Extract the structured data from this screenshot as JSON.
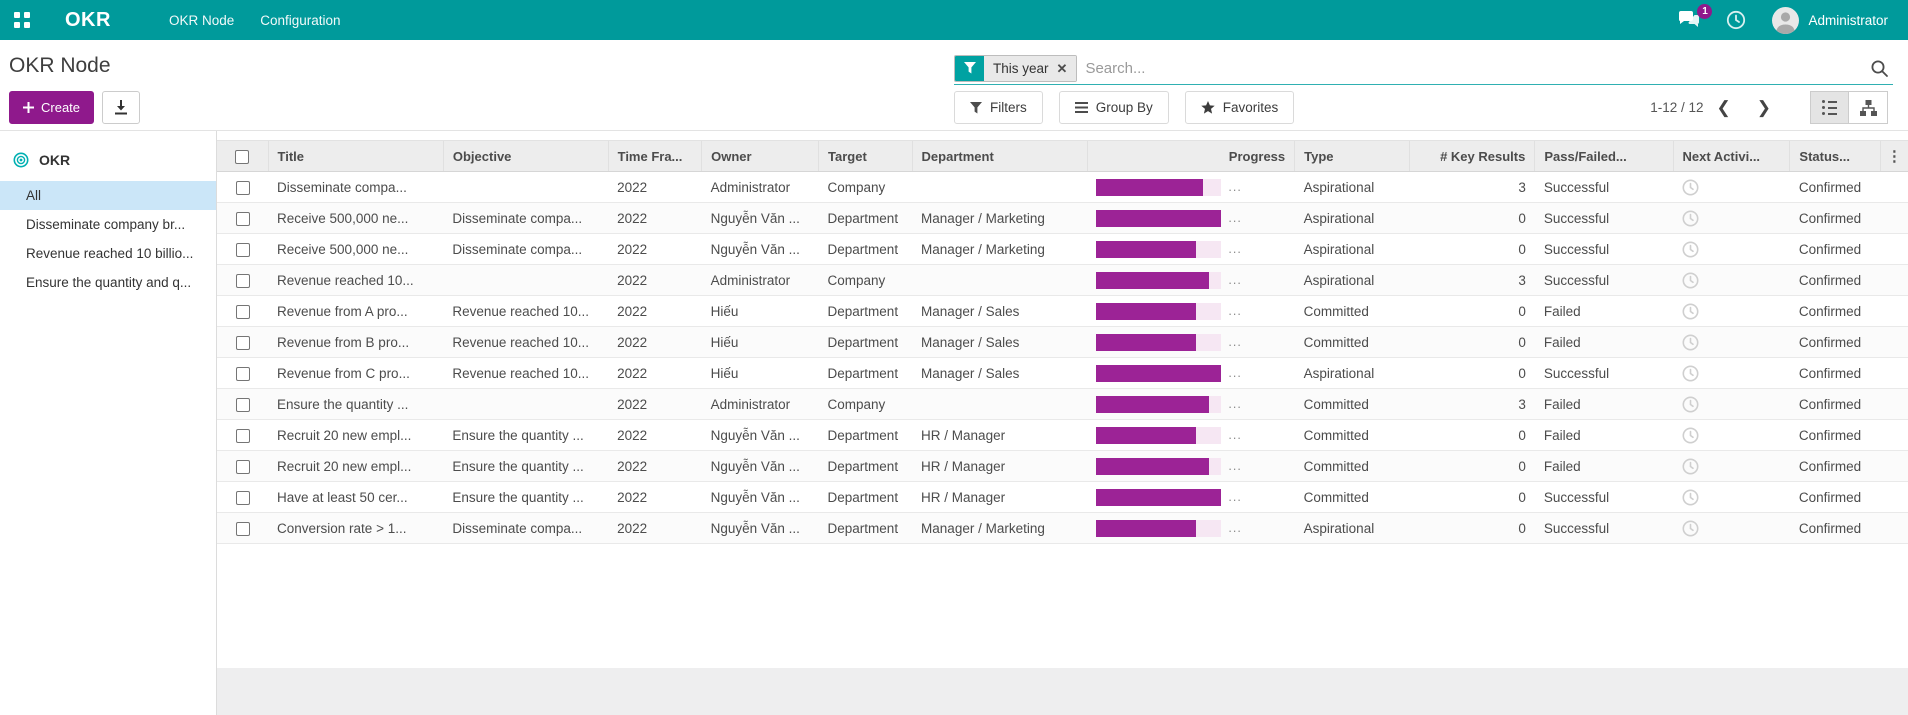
{
  "navbar": {
    "brand": "OKR",
    "menus": [
      "OKR Node",
      "Configuration"
    ],
    "messages_badge": "1",
    "user_name": "Administrator"
  },
  "control_panel": {
    "breadcrumb": "OKR Node",
    "create_label": "Create",
    "search": {
      "facet_label": "This year",
      "facet_remove": "✕",
      "placeholder": "Search..."
    },
    "buttons": {
      "filters": "Filters",
      "group_by": "Group By",
      "favorites": "Favorites"
    },
    "pager": {
      "range_label": "1-12 / 12",
      "prev": "❮",
      "next": "❯"
    }
  },
  "sidebar": {
    "root_label": "OKR",
    "items": [
      {
        "label": "All",
        "selected": true
      },
      {
        "label": "Disseminate company br...",
        "selected": false
      },
      {
        "label": "Revenue reached 10 billio...",
        "selected": false
      },
      {
        "label": "Ensure the quantity and q...",
        "selected": false
      }
    ]
  },
  "table": {
    "columns": [
      "Title",
      "Objective",
      "Time Fra...",
      "Owner",
      "Target",
      "Department",
      "Progress",
      "Type",
      "# Key Results",
      "Pass/Failed...",
      "Next Activi...",
      "Status..."
    ],
    "options_toggle_icon": "⋮",
    "progress_ellipsis": "...",
    "rows": [
      {
        "title": "Disseminate compa...",
        "objective": "",
        "time_frame": "2022",
        "owner": "Administrator",
        "target": "Company",
        "department": "",
        "progress": 85,
        "type": "Aspirational",
        "key_results": "3",
        "pass_failed": "Successful",
        "status": "Confirmed"
      },
      {
        "title": "Receive 500,000 ne...",
        "objective": "Disseminate compa...",
        "time_frame": "2022",
        "owner": "Nguyễn Văn ...",
        "target": "Department",
        "department": "Manager / Marketing",
        "progress": 100,
        "type": "Aspirational",
        "key_results": "0",
        "pass_failed": "Successful",
        "status": "Confirmed"
      },
      {
        "title": "Receive 500,000 ne...",
        "objective": "Disseminate compa...",
        "time_frame": "2022",
        "owner": "Nguyễn Văn ...",
        "target": "Department",
        "department": "Manager / Marketing",
        "progress": 80,
        "type": "Aspirational",
        "key_results": "0",
        "pass_failed": "Successful",
        "status": "Confirmed"
      },
      {
        "title": "Revenue reached 10...",
        "objective": "",
        "time_frame": "2022",
        "owner": "Administrator",
        "target": "Company",
        "department": "",
        "progress": 90,
        "type": "Aspirational",
        "key_results": "3",
        "pass_failed": "Successful",
        "status": "Confirmed"
      },
      {
        "title": "Revenue from A pro...",
        "objective": "Revenue reached 10...",
        "time_frame": "2022",
        "owner": "Hiếu",
        "target": "Department",
        "department": "Manager / Sales",
        "progress": 80,
        "type": "Committed",
        "key_results": "0",
        "pass_failed": "Failed",
        "status": "Confirmed"
      },
      {
        "title": "Revenue from B pro...",
        "objective": "Revenue reached 10...",
        "time_frame": "2022",
        "owner": "Hiếu",
        "target": "Department",
        "department": "Manager / Sales",
        "progress": 80,
        "type": "Committed",
        "key_results": "0",
        "pass_failed": "Failed",
        "status": "Confirmed"
      },
      {
        "title": "Revenue from C pro...",
        "objective": "Revenue reached 10...",
        "time_frame": "2022",
        "owner": "Hiếu",
        "target": "Department",
        "department": "Manager / Sales",
        "progress": 100,
        "type": "Aspirational",
        "key_results": "0",
        "pass_failed": "Successful",
        "status": "Confirmed"
      },
      {
        "title": "Ensure the quantity ...",
        "objective": "",
        "time_frame": "2022",
        "owner": "Administrator",
        "target": "Company",
        "department": "",
        "progress": 90,
        "type": "Committed",
        "key_results": "3",
        "pass_failed": "Failed",
        "status": "Confirmed"
      },
      {
        "title": "Recruit 20 new empl...",
        "objective": "Ensure the quantity ...",
        "time_frame": "2022",
        "owner": "Nguyễn Văn ...",
        "target": "Department",
        "department": "HR / Manager",
        "progress": 80,
        "type": "Committed",
        "key_results": "0",
        "pass_failed": "Failed",
        "status": "Confirmed"
      },
      {
        "title": "Recruit 20 new empl...",
        "objective": "Ensure the quantity ...",
        "time_frame": "2022",
        "owner": "Nguyễn Văn ...",
        "target": "Department",
        "department": "HR / Manager",
        "progress": 90,
        "type": "Committed",
        "key_results": "0",
        "pass_failed": "Failed",
        "status": "Confirmed"
      },
      {
        "title": "Have at least 50 cer...",
        "objective": "Ensure the quantity ...",
        "time_frame": "2022",
        "owner": "Nguyễn Văn ...",
        "target": "Department",
        "department": "HR / Manager",
        "progress": 100,
        "type": "Committed",
        "key_results": "0",
        "pass_failed": "Successful",
        "status": "Confirmed"
      },
      {
        "title": "Conversion rate > 1...",
        "objective": "Disseminate compa...",
        "time_frame": "2022",
        "owner": "Nguyễn Văn ...",
        "target": "Department",
        "department": "Manager / Marketing",
        "progress": 80,
        "type": "Aspirational",
        "key_results": "0",
        "pass_failed": "Successful",
        "status": "Confirmed"
      }
    ]
  },
  "icons": [
    "apps-grid-icon",
    "messages-icon",
    "activities-clock-icon",
    "avatar",
    "filter-funnel-icon",
    "facet-remove-icon",
    "search-icon",
    "plus-icon",
    "export-download-icon",
    "group-by-icon",
    "favorites-star-icon",
    "pager-previous-icon",
    "pager-next-icon",
    "list-view-icon",
    "hierarchy-view-icon",
    "bullseye-icon",
    "row-activity-clock-icon",
    "column-options-icon"
  ],
  "colors": {
    "navbar_teal": "#009a9b",
    "primary_purple": "#8f198c",
    "progress_fill": "#9c2396",
    "progress_track": "#f6e7f3",
    "facet_teal": "#00a2a2",
    "selected_sidebar_bg": "#cbe6f8"
  }
}
